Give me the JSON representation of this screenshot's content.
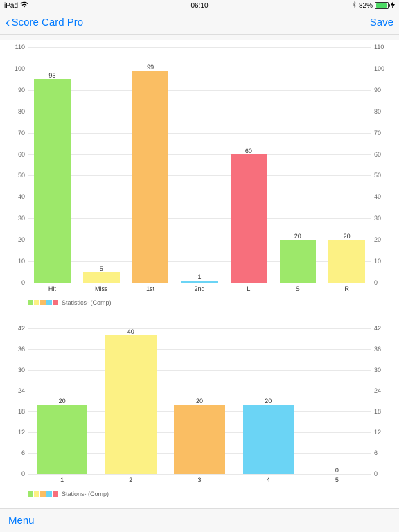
{
  "status": {
    "device": "iPad",
    "time": "06:10",
    "battery_pct": "82%",
    "bt_icon": "⚡",
    "charging": "⚡",
    "battery_fill_pct": 82
  },
  "nav": {
    "back_label": "Score Card Pro",
    "save_label": "Save"
  },
  "bottom": {
    "menu_label": "Menu"
  },
  "chart1": {
    "type": "bar",
    "categories": [
      "Hit",
      "Miss",
      "1st",
      "2nd",
      "L",
      "S",
      "R"
    ],
    "values": [
      95,
      5,
      99,
      1,
      60,
      20,
      20
    ],
    "bar_colors": [
      "#9de86a",
      "#fcf184",
      "#fabe63",
      "#6bd4f5",
      "#f76f7c",
      "#9de86a",
      "#fcf184"
    ],
    "ylim": [
      0,
      110
    ],
    "ytick_step": 10,
    "legend_colors": [
      "#9de86a",
      "#fcf184",
      "#fabe63",
      "#6bd4f5",
      "#f76f7c"
    ],
    "legend_label": "Statistics- (Comp)",
    "grid_color": "#e8e8e8",
    "background_color": "#ffffff",
    "label_fontsize": 9,
    "bar_width": 0.74
  },
  "chart2": {
    "type": "bar",
    "categories": [
      "1",
      "2",
      "3",
      "4",
      "5"
    ],
    "values": [
      20,
      40,
      20,
      20,
      0
    ],
    "bar_colors": [
      "#9de86a",
      "#fcf184",
      "#fabe63",
      "#6bd4f5",
      "#f76f7c"
    ],
    "ylim": [
      0,
      42
    ],
    "ytick_step": 6,
    "legend_colors": [
      "#9de86a",
      "#fcf184",
      "#fabe63",
      "#6bd4f5",
      "#f76f7c"
    ],
    "legend_label": "Stations- (Comp)",
    "grid_color": "#e8e8e8",
    "background_color": "#ffffff",
    "label_fontsize": 9,
    "bar_width": 0.74
  }
}
